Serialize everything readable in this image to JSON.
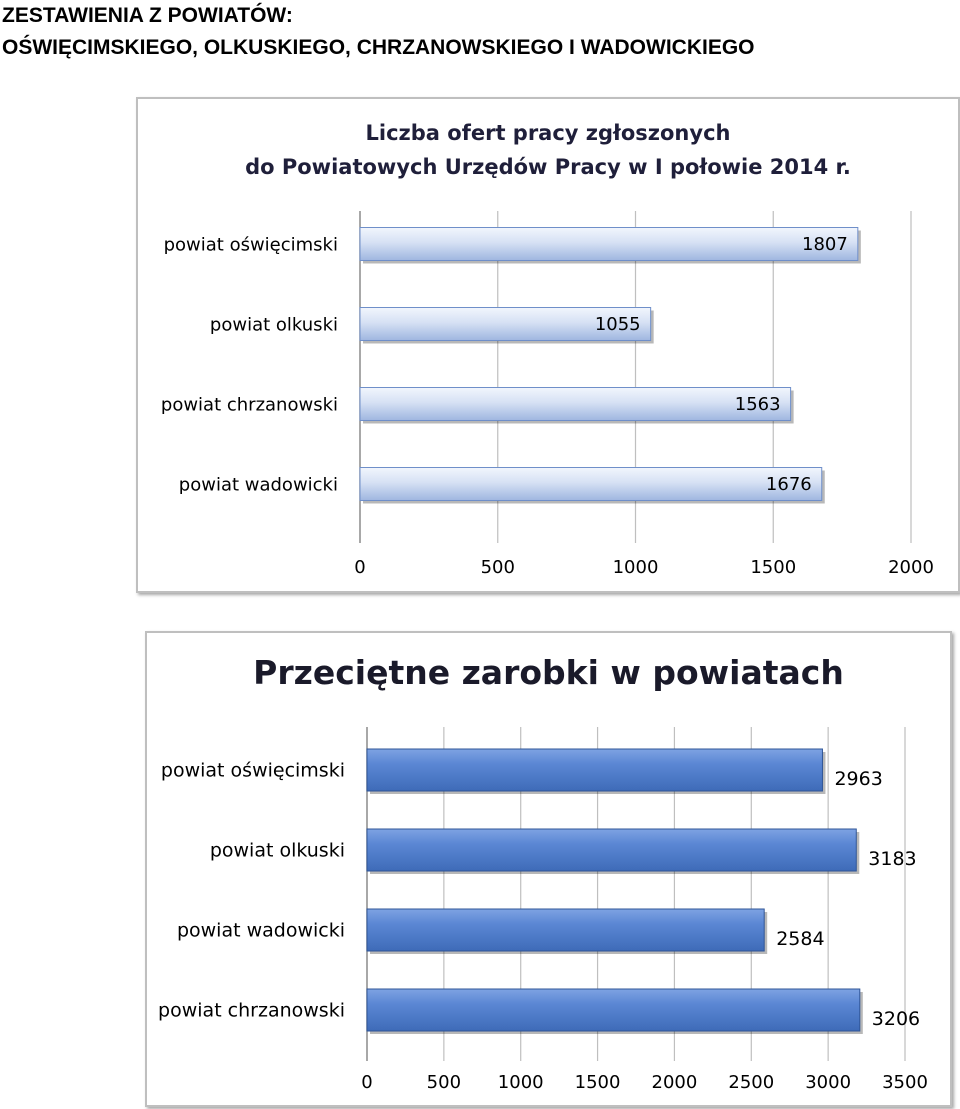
{
  "header": {
    "line1": "ZESTAWIENIA Z POWIATÓW:",
    "line2": "OŚWIĘCIMSKIEGO, OLKUSKIEGO, CHRZANOWSKIEGO I WADOWICKIEGO"
  },
  "colors": {
    "bar": "#5b87d4",
    "bar_dark": "#3e6bb8",
    "bar_light": "#c9d7f0",
    "grid": "#bfbfbf"
  },
  "chart_data": [
    {
      "type": "bar",
      "orientation": "horizontal",
      "title_lines": [
        "Liczba ofert pracy zgłoszonych",
        "do Powiatowych Urzędów Pracy w I połowie 2014 r."
      ],
      "categories": [
        "powiat oświęcimski",
        "powiat olkuski",
        "powiat chrzanowski",
        "powiat wadowicki"
      ],
      "values": [
        1807,
        1055,
        1563,
        1676
      ],
      "value_labels": [
        "1807",
        "1055",
        "1563",
        "1676"
      ],
      "xlim": [
        0,
        2000
      ],
      "ticks": [
        "0",
        "500",
        "1000",
        "1500",
        "2000"
      ],
      "grid": true,
      "style": "light-gradient"
    },
    {
      "type": "bar",
      "orientation": "horizontal",
      "title_lines": [
        "Przeciętne zarobki w powiatach"
      ],
      "categories": [
        "powiat oświęcimski",
        "powiat olkuski",
        "powiat wadowicki",
        "powiat chrzanowski"
      ],
      "values": [
        2963,
        3183,
        2584,
        3206
      ],
      "value_labels": [
        "2963",
        "3183",
        "2584",
        "3206"
      ],
      "xlim": [
        0,
        3500
      ],
      "ticks": [
        "0",
        "500",
        "1000",
        "1500",
        "2000",
        "2500",
        "3000",
        "3500"
      ],
      "grid": true,
      "style": "solid-blue"
    }
  ]
}
